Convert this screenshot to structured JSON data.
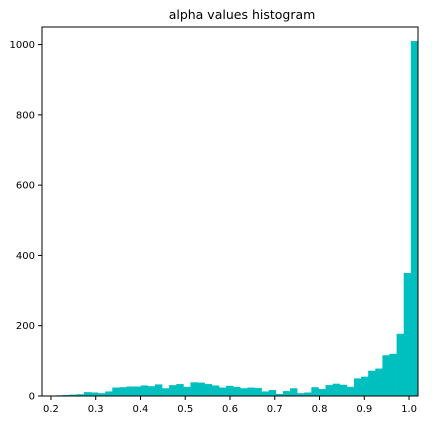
{
  "chart_data": {
    "type": "bar",
    "title": "alpha values histogram",
    "xlabel": "",
    "ylabel": "",
    "bar_color": "#00bfbf",
    "xlim": [
      0.18,
      1.02
    ],
    "ylim": [
      0,
      1050
    ],
    "bin_start": 0.21,
    "bin_width": 0.01588,
    "values": [
      2,
      3,
      4,
      5,
      11,
      10,
      8,
      13,
      24,
      25,
      27,
      27,
      30,
      28,
      33,
      22,
      31,
      34,
      26,
      39,
      38,
      34,
      30,
      24,
      29,
      26,
      22,
      24,
      23,
      13,
      17,
      6,
      14,
      22,
      8,
      10,
      25,
      20,
      31,
      35,
      32,
      26,
      50,
      55,
      72,
      78,
      116,
      120,
      177,
      350,
      1010
    ],
    "xticks": [
      0.2,
      0.3,
      0.4,
      0.5,
      0.6,
      0.7,
      0.8,
      0.9,
      1.0
    ],
    "xtick_labels": [
      "0.2",
      "0.3",
      "0.4",
      "0.5",
      "0.6",
      "0.7",
      "0.8",
      "0.9",
      "1.0"
    ],
    "yticks": [
      0,
      200,
      400,
      600,
      800,
      1000
    ],
    "ytick_labels": [
      "0",
      "200",
      "400",
      "600",
      "800",
      "1000"
    ],
    "grid": false
  }
}
